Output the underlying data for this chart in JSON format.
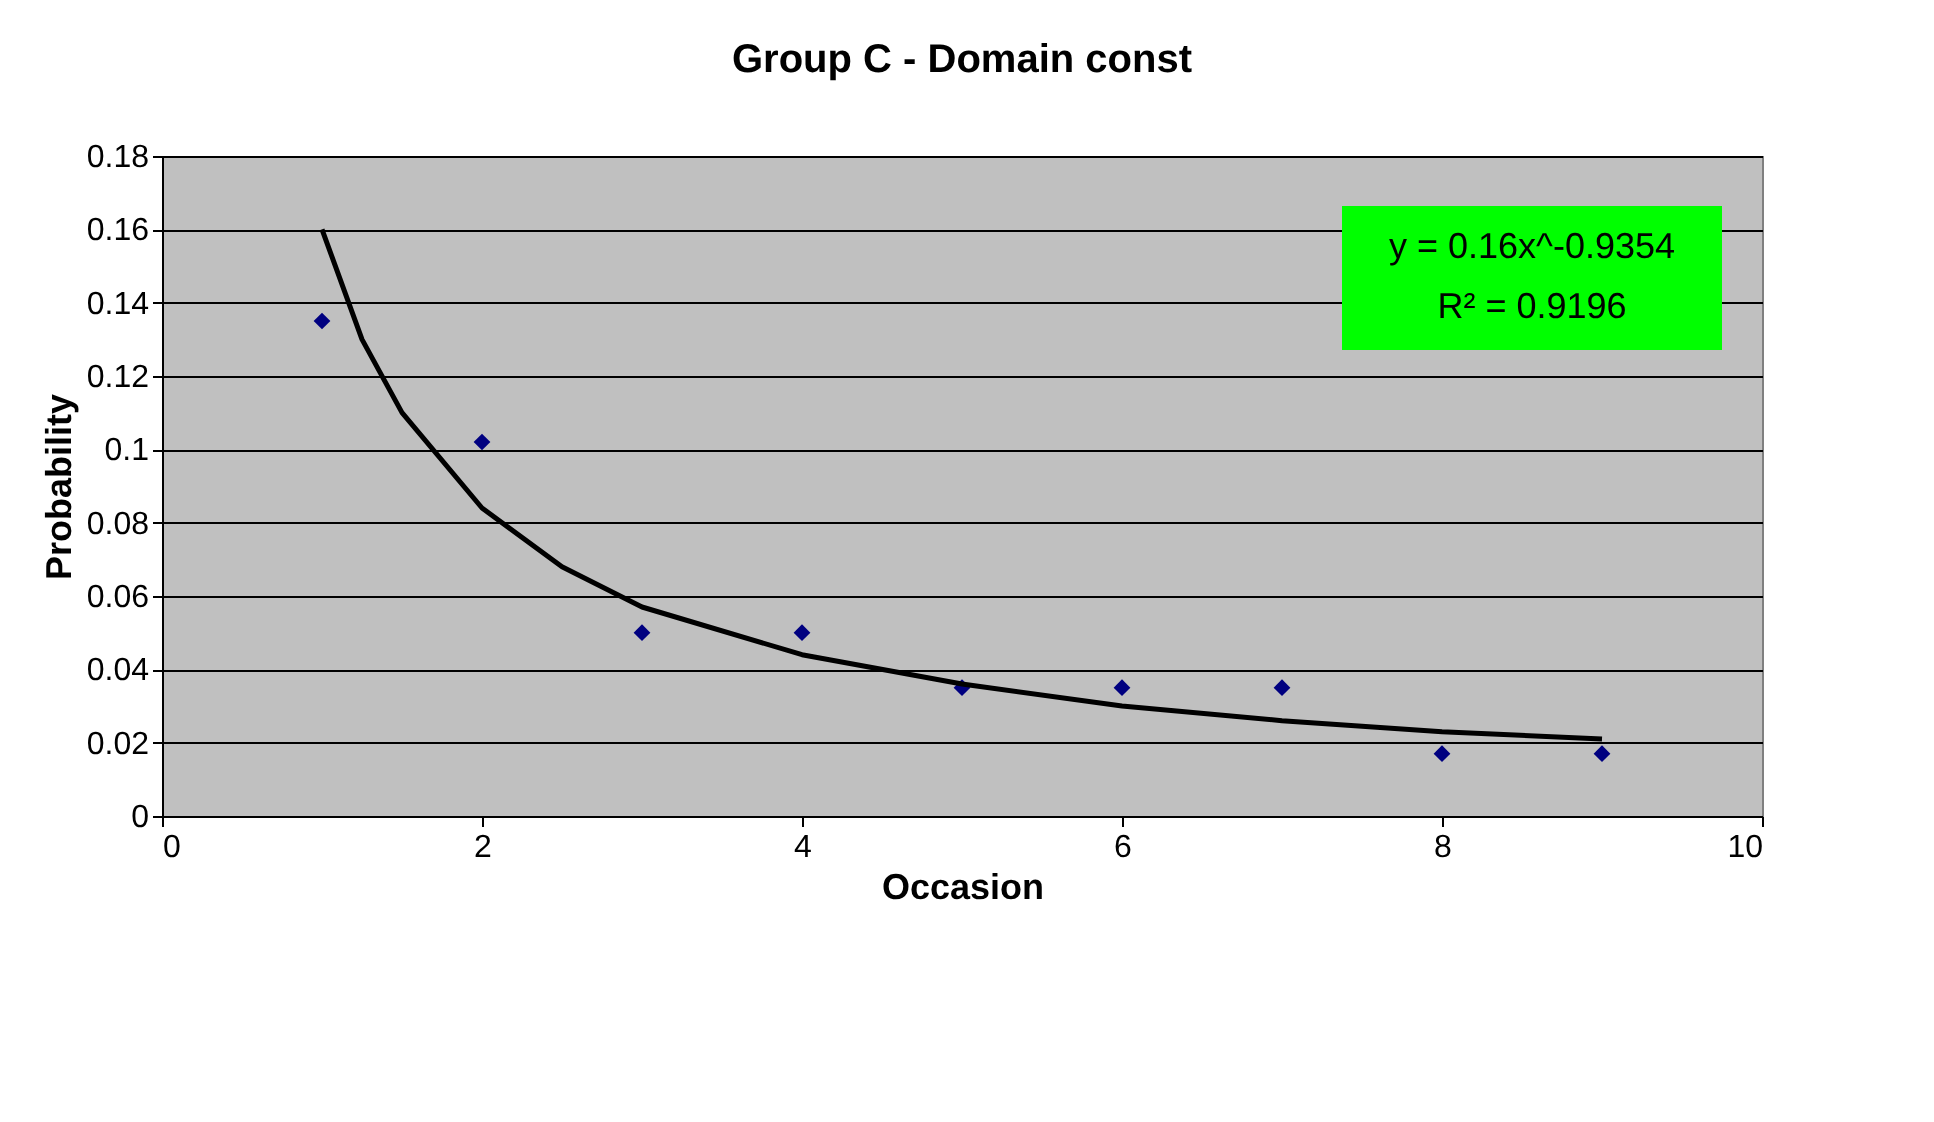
{
  "chart_data": {
    "type": "scatter",
    "title": "Group C - Domain const",
    "xlabel": "Occasion",
    "ylabel": "Probability",
    "x": [
      1,
      2,
      3,
      4,
      5,
      6,
      7,
      8,
      9
    ],
    "series": [
      {
        "color": "#000080",
        "marker": "diamond",
        "values": [
          0.135,
          0.102,
          0.05,
          0.05,
          0.035,
          0.035,
          0.035,
          0.017,
          0.017
        ]
      },
      {
        "type": "line",
        "color": "#000000",
        "line_style": "solid",
        "marker": "none",
        "x": [
          1,
          1.25,
          1.5,
          2,
          2.5,
          3,
          4,
          5,
          6,
          7,
          8,
          9
        ],
        "values": [
          0.16,
          0.13,
          0.11,
          0.084,
          0.068,
          0.057,
          0.044,
          0.036,
          0.03,
          0.026,
          0.023,
          0.021
        ]
      }
    ],
    "annotations": [
      "y = 0.16x^-0.9354",
      "R² = 0.9196"
    ],
    "xlim": [
      0,
      10
    ],
    "xticks": [
      0,
      2,
      4,
      6,
      8,
      10
    ],
    "ylim": [
      0,
      0.18
    ],
    "yticks": [
      0,
      0.02,
      0.04,
      0.06,
      0.08,
      0.1,
      0.12,
      0.14,
      0.16,
      0.18
    ],
    "grid": "y",
    "legend": false
  }
}
